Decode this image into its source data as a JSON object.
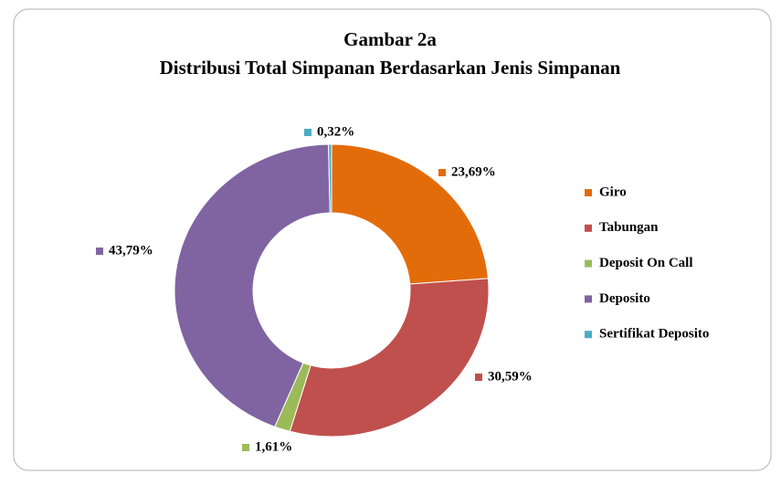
{
  "chart_data": {
    "type": "donut",
    "title": "Gambar 2a",
    "subtitle": "Distribusi Total Simpanan Berdasarkan Jenis Simpanan",
    "categories": [
      "Giro",
      "Tabungan",
      "Deposit On Call",
      "Deposito",
      "Sertifikat Deposito"
    ],
    "values": [
      23.69,
      30.59,
      1.61,
      43.79,
      0.32
    ],
    "value_labels": [
      "23,69%",
      "30,59%",
      "1,61%",
      "43,79%",
      "0,32%"
    ],
    "colors": [
      "#e36c0a",
      "#c0504d",
      "#9bbb59",
      "#8064a2",
      "#4bacc6"
    ],
    "legend": "right"
  }
}
